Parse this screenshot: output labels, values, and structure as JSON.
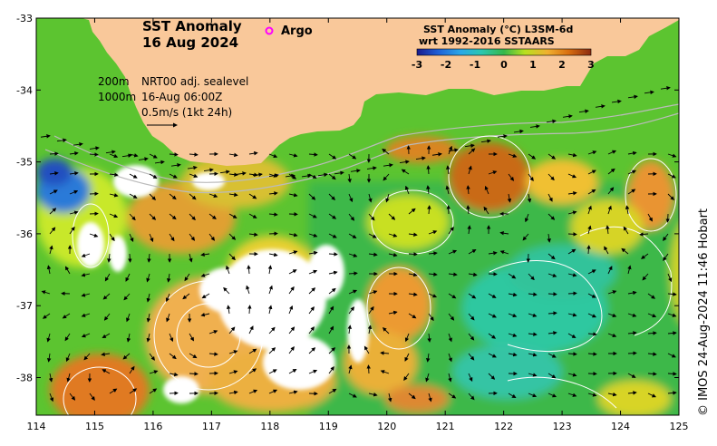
{
  "map": {
    "title_line1": "SST Anomaly",
    "title_line2": "16 Aug 2024",
    "argo_label": "Argo",
    "legend_title_line1": "SST Anomaly (°C) L3SM-6d",
    "legend_title_line2": "wrt 1992-2016 SSTAARS",
    "colorbar_ticks": [
      "-3",
      "-2",
      "-1",
      "0",
      "1",
      "2",
      "3"
    ],
    "contour_label_1": "200m",
    "contour_label_2": "1000m",
    "current_source": "NRT00 adj. sealevel",
    "current_time": "16-Aug 06:00Z",
    "scale_label": "0.5m/s (1kt 24h)",
    "credit": "© IMOS 24-Aug-2024 11:46 Hobart",
    "x_ticks": [
      "114",
      "115",
      "116",
      "117",
      "118",
      "119",
      "120",
      "121",
      "122",
      "123",
      "124",
      "125"
    ],
    "y_ticks": [
      "-33",
      "-34",
      "-35",
      "-36",
      "-37",
      "-38"
    ],
    "colors": {
      "land": "#f9c89a",
      "argo_marker": "#ff00ff",
      "contour": "#ffffff"
    }
  }
}
